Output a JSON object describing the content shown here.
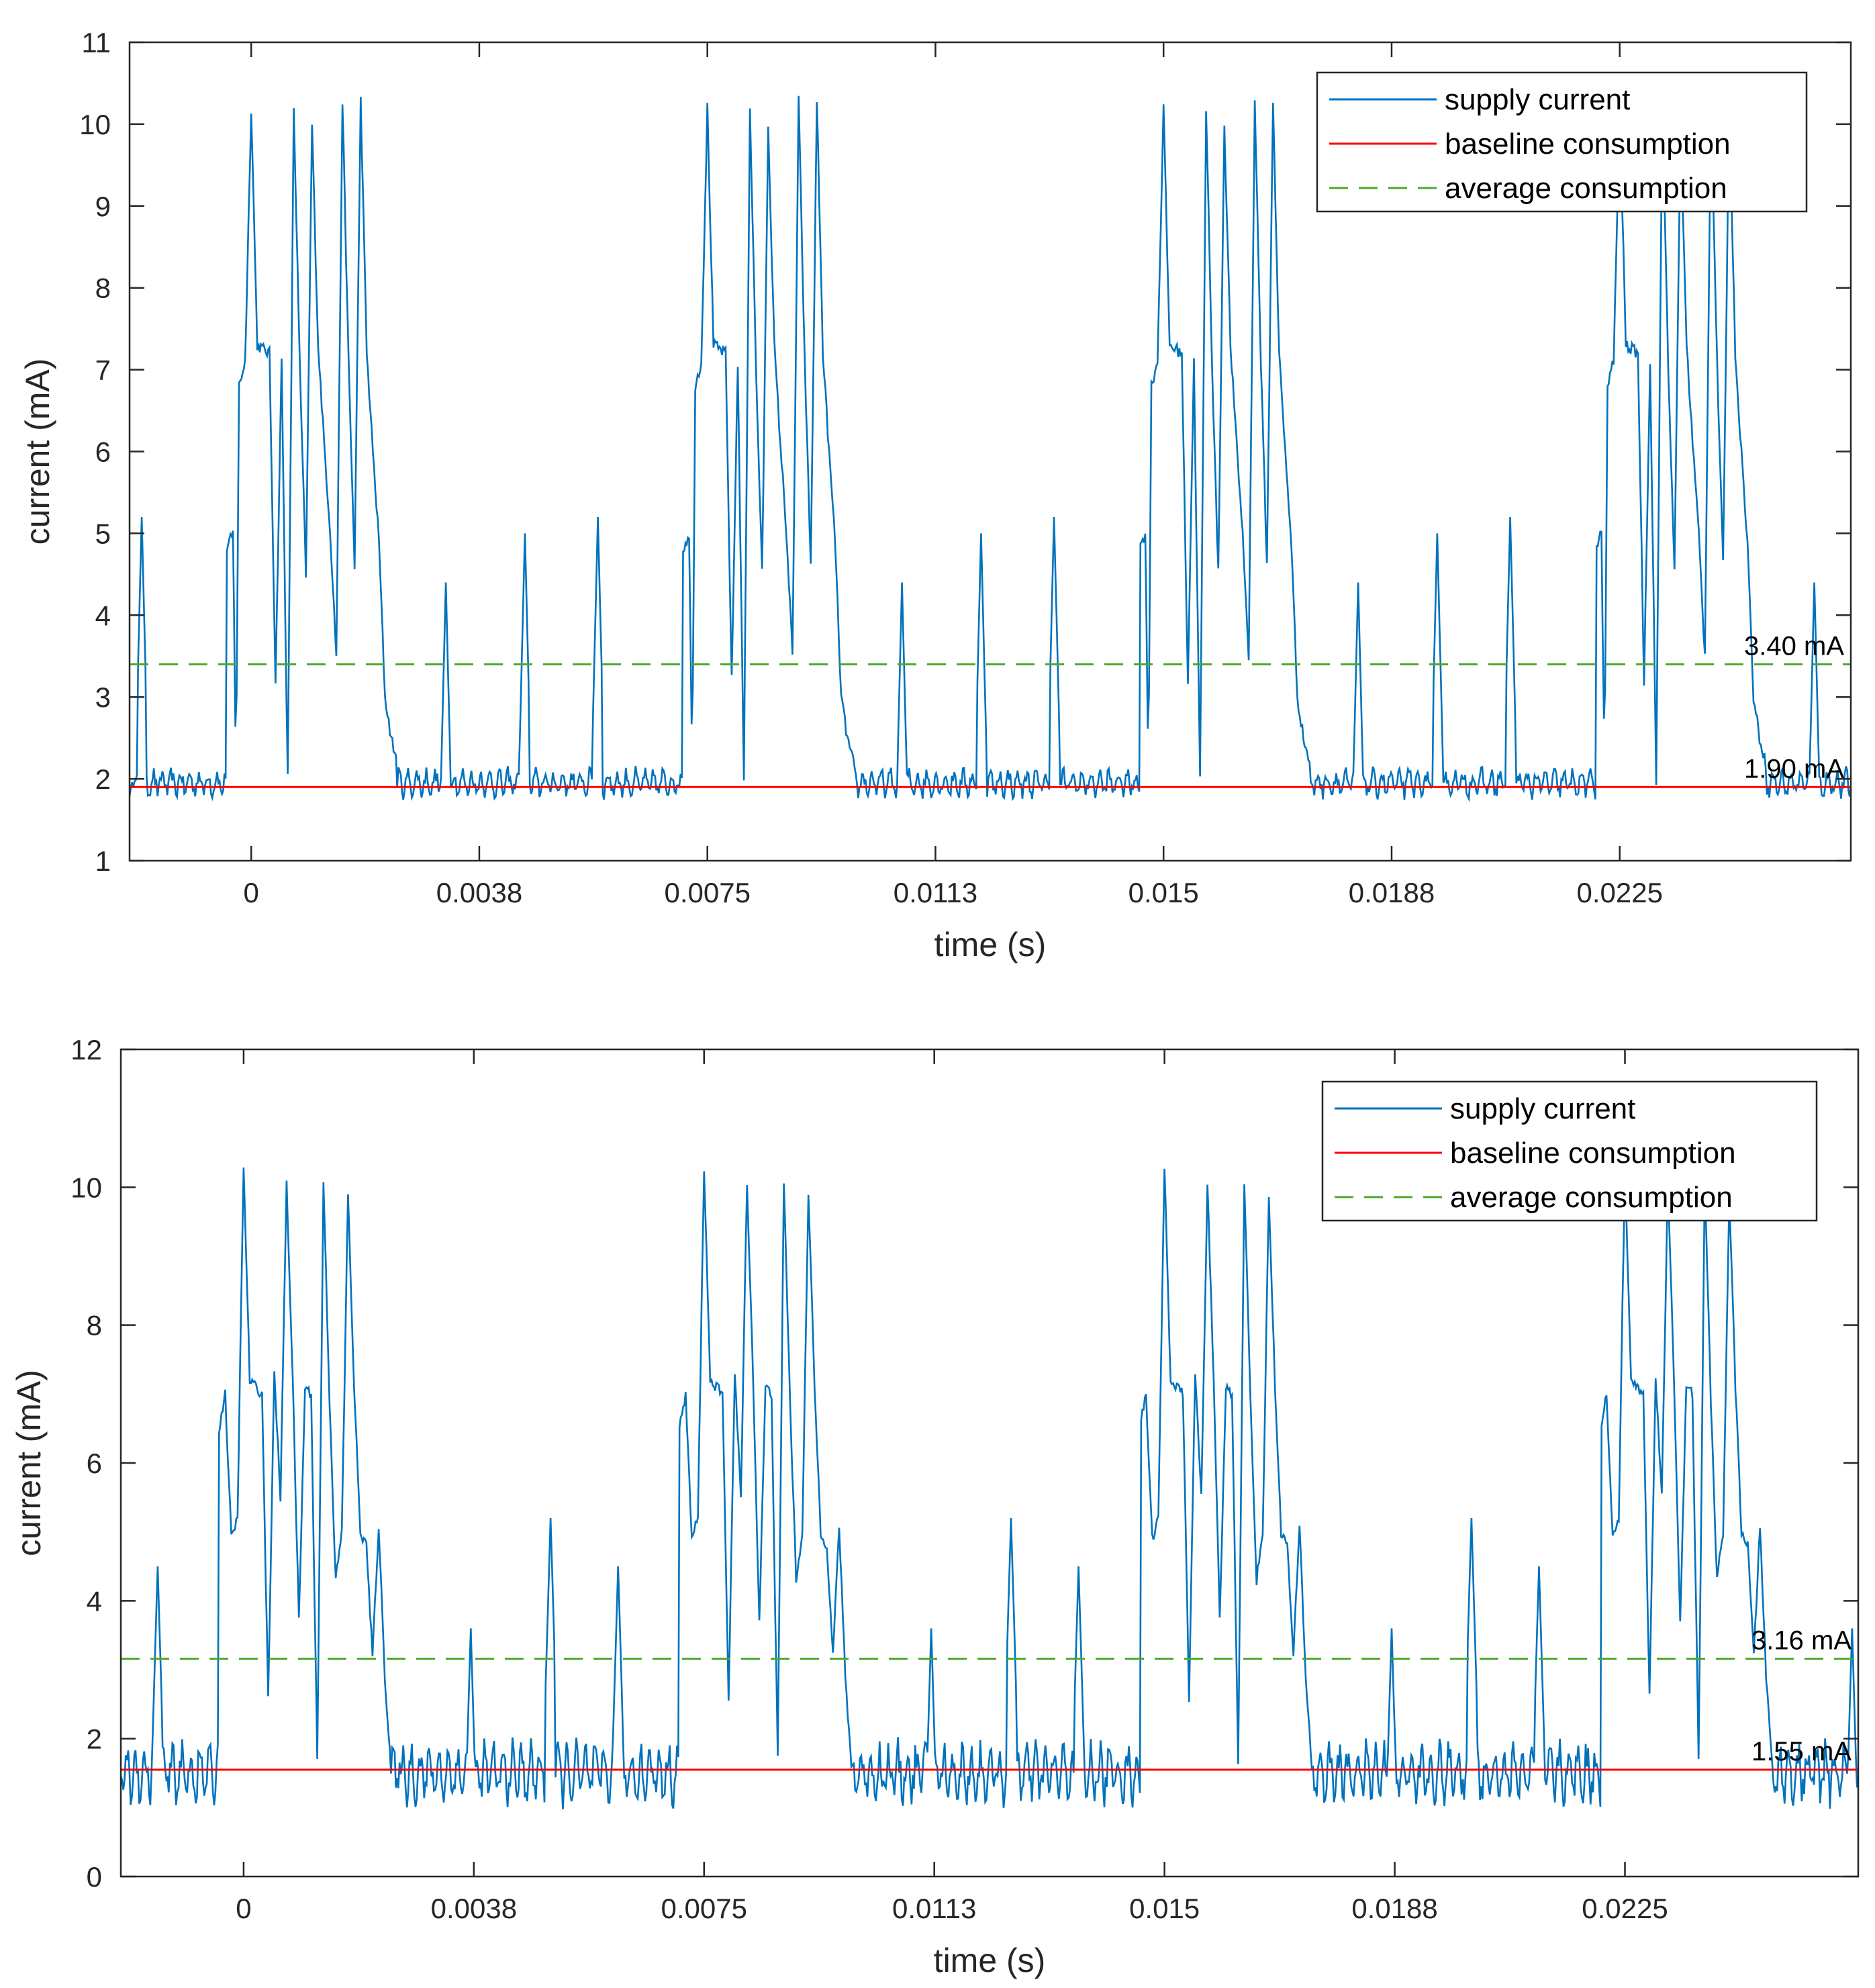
{
  "colors": {
    "supply": "#0072BD",
    "baseline": "#FF0000",
    "average": "#4DA82B",
    "axis": "#262626"
  },
  "chart_data": [
    {
      "type": "line",
      "xlabel": "time (s)",
      "ylabel": "current (mA)",
      "xlim": [
        -0.002,
        0.0263
      ],
      "ylim": [
        1,
        11
      ],
      "xticks": [
        0,
        0.00375,
        0.0075,
        0.01125,
        0.015,
        0.01875,
        0.0225
      ],
      "xtick_labels": [
        "0",
        "0.0038",
        "0.0075",
        "0.0113",
        "0.015",
        "0.0188",
        "0.0225"
      ],
      "yticks": [
        1,
        2,
        3,
        4,
        5,
        6,
        7,
        8,
        9,
        10,
        11
      ],
      "ytick_labels": [
        "1",
        "2",
        "3",
        "4",
        "5",
        "6",
        "7",
        "8",
        "9",
        "10",
        "11"
      ],
      "legend": [
        "supply current",
        "baseline consumption",
        "average consumption"
      ],
      "legend_position": "top-right",
      "baseline_value": 1.9,
      "average_value": 3.4,
      "baseline_label": "1.90 mA",
      "average_label": "3.40 mA",
      "period": 0.0075,
      "series": [
        {
          "name": "supply current",
          "burst": {
            "x": [
              -0.0004,
              -0.0003,
              -0.00025,
              -0.0002,
              -0.0001,
              0.0,
              0.0001,
              0.0003,
              0.0004,
              0.0005,
              0.0006,
              0.0007,
              0.0008,
              0.0009,
              0.001,
              0.0011,
              0.0012,
              0.0013,
              0.0014,
              0.0015,
              0.0016,
              0.0017,
              0.0018,
              0.0019,
              0.002,
              0.0021,
              0.0022,
              0.0023,
              0.0024
            ],
            "y": [
              4.8,
              5.0,
              2.1,
              6.8,
              7.1,
              10.2,
              7.3,
              7.2,
              3.2,
              7.1,
              2.0,
              10.2,
              7.0,
              4.5,
              10.0,
              7.3,
              6.1,
              5.0,
              3.5,
              10.3,
              7.1,
              4.6,
              10.3,
              7.2,
              6.0,
              4.9,
              3.0,
              2.5,
              2.2
            ]
          },
          "spike_offsets": [
            0.0032,
            0.0045,
            0.0057
          ],
          "spike_values": [
            4.4,
            5.0,
            5.2
          ],
          "noise_base": 1.95,
          "noise_amplitude": 0.2
        }
      ]
    },
    {
      "type": "line",
      "xlabel": "time (s)",
      "ylabel": "current (mA)",
      "xlim": [
        -0.002,
        0.0263
      ],
      "ylim": [
        0,
        12
      ],
      "xticks": [
        0,
        0.00375,
        0.0075,
        0.01125,
        0.015,
        0.01875,
        0.0225
      ],
      "xtick_labels": [
        "0",
        "0.0038",
        "0.0075",
        "0.0113",
        "0.015",
        "0.0188",
        "0.0225"
      ],
      "yticks": [
        0,
        2,
        4,
        6,
        8,
        10,
        12
      ],
      "ytick_labels": [
        "0",
        "2",
        "4",
        "6",
        "8",
        "10",
        "12"
      ],
      "legend": [
        "supply current",
        "baseline consumption",
        "average consumption"
      ],
      "legend_position": "top-right",
      "baseline_value": 1.55,
      "average_value": 3.16,
      "baseline_label": "1.55 mA",
      "average_label": "3.16 mA",
      "period": 0.0075,
      "series": [
        {
          "name": "supply current",
          "burst": {
            "x": [
              -0.0004,
              -0.0003,
              -0.0002,
              -0.0001,
              0.0,
              0.0001,
              0.0003,
              0.0004,
              0.0005,
              0.0006,
              0.0007,
              0.0008,
              0.0009,
              0.001,
              0.0011,
              0.0012,
              0.0013,
              0.0014,
              0.0015,
              0.0016,
              0.0017,
              0.0018,
              0.0019,
              0.002,
              0.0021,
              0.0022,
              0.0023,
              0.0024
            ],
            "y": [
              6.5,
              7.0,
              4.9,
              5.2,
              10.3,
              7.2,
              7.0,
              2.6,
              7.3,
              5.5,
              10.1,
              7.2,
              3.7,
              7.1,
              7.0,
              1.7,
              10.1,
              6.9,
              4.3,
              5.0,
              9.9,
              7.1,
              5.0,
              4.8,
              3.2,
              5.1,
              2.9,
              1.6
            ]
          },
          "spike_offsets": [
            0.0037,
            0.005,
            0.0061
          ],
          "spike_values": [
            3.6,
            5.2,
            4.5
          ],
          "noise_base": 1.5,
          "noise_amplitude": 0.5
        }
      ]
    }
  ]
}
